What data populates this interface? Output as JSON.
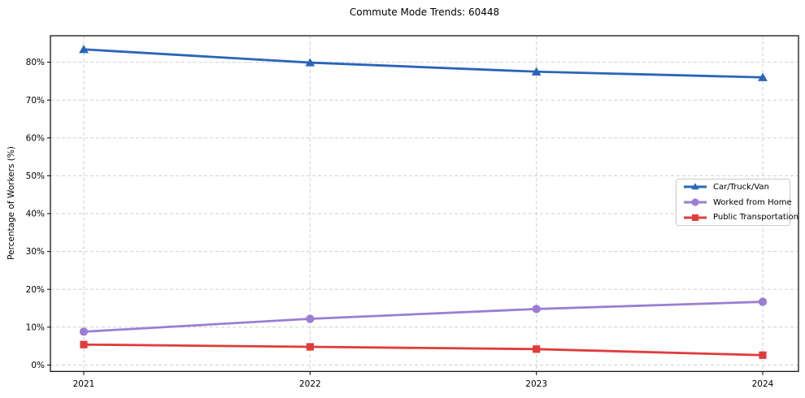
{
  "page": {
    "background": "#ffffff",
    "axis_color": "#000000",
    "grid_color": "#cfcfcf"
  },
  "chart_data": {
    "type": "line",
    "title": "Commute Mode Trends: 60448",
    "xlabel": "",
    "ylabel": "Percentage of Workers (%)",
    "categories": [
      "2021",
      "2022",
      "2023",
      "2024"
    ],
    "y_tick_labels": [
      "0%",
      "10%",
      "20%",
      "30%",
      "40%",
      "50%",
      "60%",
      "70%",
      "80%"
    ],
    "y_tick_values": [
      0,
      10,
      20,
      30,
      40,
      50,
      60,
      70,
      80
    ],
    "ylim": [
      -1.7,
      87.0
    ],
    "grid": "dashed",
    "legend_position": "center-right",
    "series": [
      {
        "name": "Car/Truck/Van",
        "color": "#2a65b8",
        "marker": "triangle",
        "values": [
          83.4,
          79.9,
          77.5,
          76.0
        ]
      },
      {
        "name": "Worked from Home",
        "color": "#9b7ed3",
        "marker": "circle",
        "values": [
          8.8,
          12.2,
          14.8,
          16.7
        ]
      },
      {
        "name": "Public Transportation",
        "color": "#e03c3c",
        "marker": "square",
        "values": [
          5.4,
          4.8,
          4.2,
          2.6
        ]
      }
    ]
  }
}
